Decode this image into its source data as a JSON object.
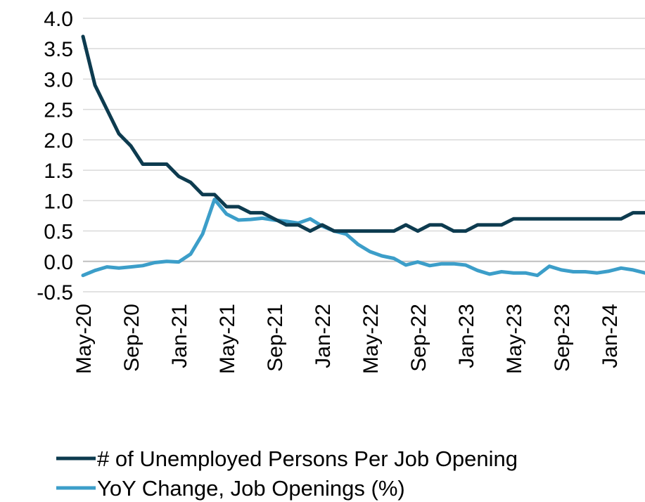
{
  "chart_data": {
    "type": "line",
    "title": "",
    "xlabel": "",
    "ylabel": "",
    "ylim": [
      -0.5,
      4.0
    ],
    "yticks": [
      "4.0",
      "3.5",
      "3.0",
      "2.5",
      "2.0",
      "1.5",
      "1.0",
      "0.5",
      "0.0",
      "-0.5"
    ],
    "grid": "horizontal",
    "legend_position": "bottom",
    "x": [
      "May-20",
      "Jun-20",
      "Jul-20",
      "Aug-20",
      "Sep-20",
      "Oct-20",
      "Nov-20",
      "Dec-20",
      "Jan-21",
      "Feb-21",
      "Mar-21",
      "Apr-21",
      "May-21",
      "Jun-21",
      "Jul-21",
      "Aug-21",
      "Sep-21",
      "Oct-21",
      "Nov-21",
      "Dec-21",
      "Jan-22",
      "Feb-22",
      "Mar-22",
      "Apr-22",
      "May-22",
      "Jun-22",
      "Jul-22",
      "Aug-22",
      "Sep-22",
      "Oct-22",
      "Nov-22",
      "Dec-22",
      "Jan-23",
      "Feb-23",
      "Mar-23",
      "Apr-23",
      "May-23",
      "Jun-23",
      "Jul-23",
      "Aug-23",
      "Sep-23",
      "Oct-23",
      "Nov-23",
      "Dec-23",
      "Jan-24",
      "Feb-24",
      "Mar-24",
      "Apr-24"
    ],
    "xtick_labels": [
      "May-20",
      "Sep-20",
      "Jan-21",
      "May-21",
      "Sep-21",
      "Jan-22",
      "May-22",
      "Sep-22",
      "Jan-23",
      "May-23",
      "Sep-23",
      "Jan-24"
    ],
    "series": [
      {
        "name": "# of Unemployed Persons Per Job Opening",
        "color": "#0d3b4f",
        "values": [
          3.7,
          2.9,
          2.5,
          2.1,
          1.9,
          1.6,
          1.6,
          1.6,
          1.4,
          1.3,
          1.1,
          1.1,
          0.9,
          0.9,
          0.8,
          0.8,
          0.7,
          0.6,
          0.6,
          0.5,
          0.6,
          0.5,
          0.5,
          0.5,
          0.5,
          0.5,
          0.5,
          0.6,
          0.5,
          0.6,
          0.6,
          0.5,
          0.5,
          0.6,
          0.6,
          0.6,
          0.7,
          0.7,
          0.7,
          0.7,
          0.7,
          0.7,
          0.7,
          0.7,
          0.7,
          0.7,
          0.8,
          0.8
        ]
      },
      {
        "name": "YoY Change, Job Openings (%)",
        "color": "#3c9ec9",
        "values": [
          -0.23,
          -0.15,
          -0.09,
          -0.11,
          -0.09,
          -0.07,
          -0.02,
          0.0,
          -0.01,
          0.12,
          0.45,
          1.02,
          0.78,
          0.68,
          0.69,
          0.71,
          0.68,
          0.66,
          0.63,
          0.7,
          0.58,
          0.5,
          0.45,
          0.28,
          0.16,
          0.09,
          0.05,
          -0.06,
          -0.01,
          -0.07,
          -0.04,
          -0.04,
          -0.06,
          -0.15,
          -0.21,
          -0.17,
          -0.19,
          -0.19,
          -0.23,
          -0.08,
          -0.14,
          -0.17,
          -0.17,
          -0.19,
          -0.16,
          -0.11,
          -0.14,
          -0.19
        ]
      }
    ]
  }
}
